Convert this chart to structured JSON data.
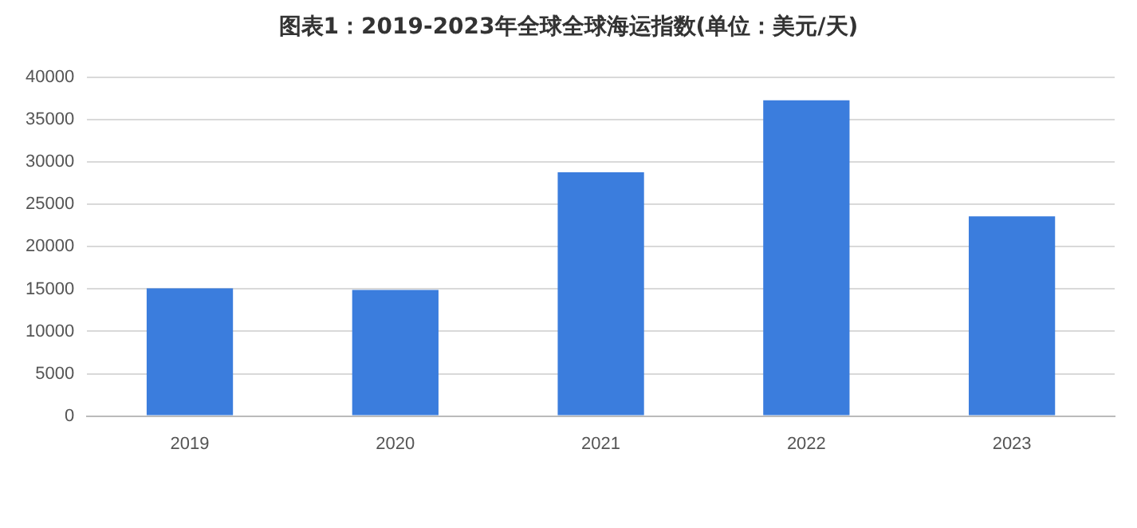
{
  "chart_data": {
    "type": "bar",
    "title": "图表1：2019-2023年全球全球海运指数(单位：美元/天)",
    "categories": [
      "2019",
      "2020",
      "2021",
      "2022",
      "2023"
    ],
    "values": [
      15100,
      14900,
      28800,
      37300,
      23600
    ],
    "color": "#3b7ddd",
    "ylim": [
      0,
      40000
    ],
    "yticks": [
      0,
      5000,
      10000,
      15000,
      20000,
      25000,
      30000,
      35000,
      40000
    ],
    "grid": "y",
    "legend": false
  }
}
